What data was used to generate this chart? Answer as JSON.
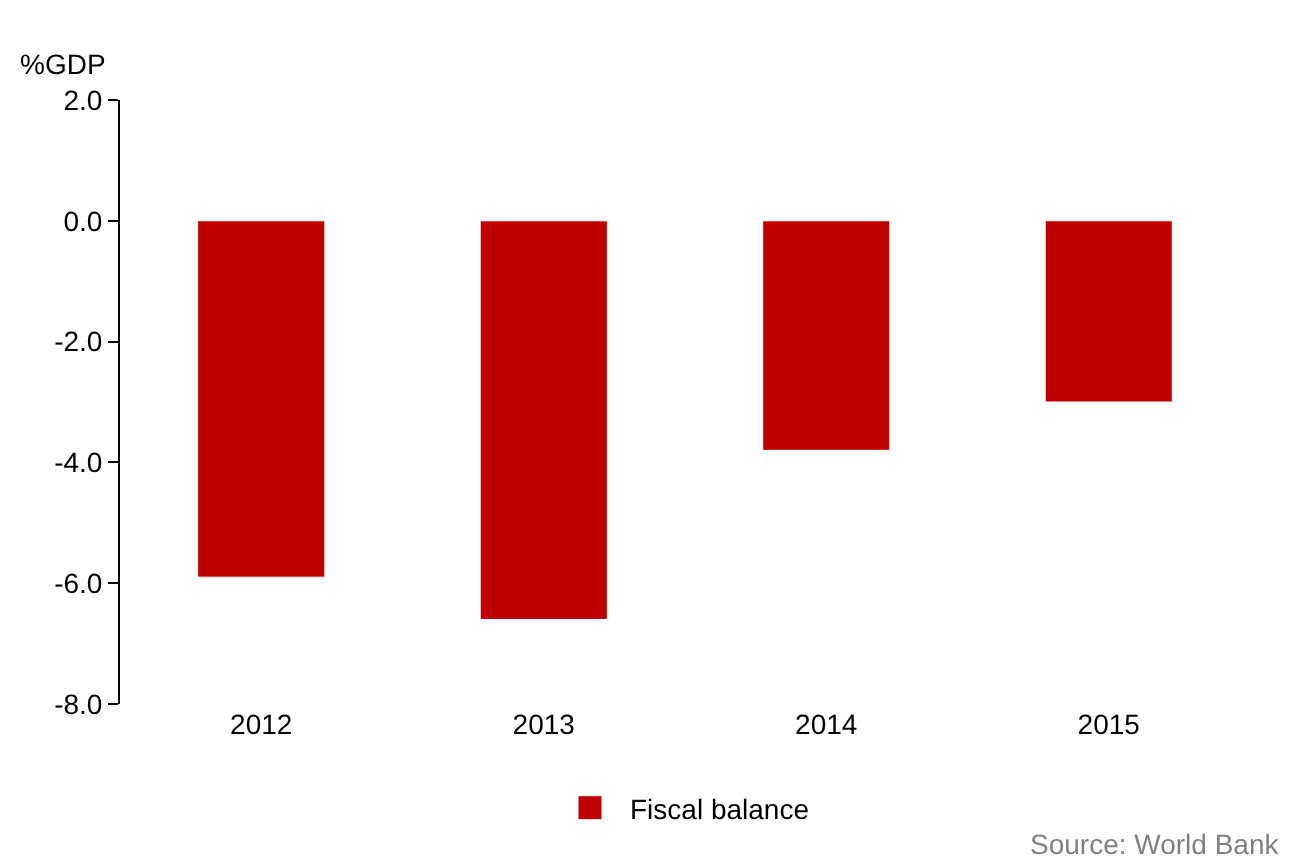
{
  "chart_data": {
    "type": "bar",
    "ylabel": "%GDP",
    "categories": [
      "2012",
      "2013",
      "2014",
      "2015"
    ],
    "series": [
      {
        "name": "Fiscal balance",
        "color": "#c00000",
        "values": [
          -5.9,
          -6.6,
          -3.8,
          -3.0
        ]
      }
    ],
    "ylim": [
      -8.0,
      2.0
    ],
    "yticks": [
      {
        "value": 2,
        "label": "2.0"
      },
      {
        "value": 0,
        "label": "0.0"
      },
      {
        "value": -2,
        "label": "-2.0"
      },
      {
        "value": -4,
        "label": "-4.0"
      },
      {
        "value": -6,
        "label": "-6.0"
      },
      {
        "value": -8,
        "label": "-8.0"
      }
    ],
    "grid": false,
    "legend": "bottom",
    "annotations": [
      "Source: World Bank"
    ]
  }
}
